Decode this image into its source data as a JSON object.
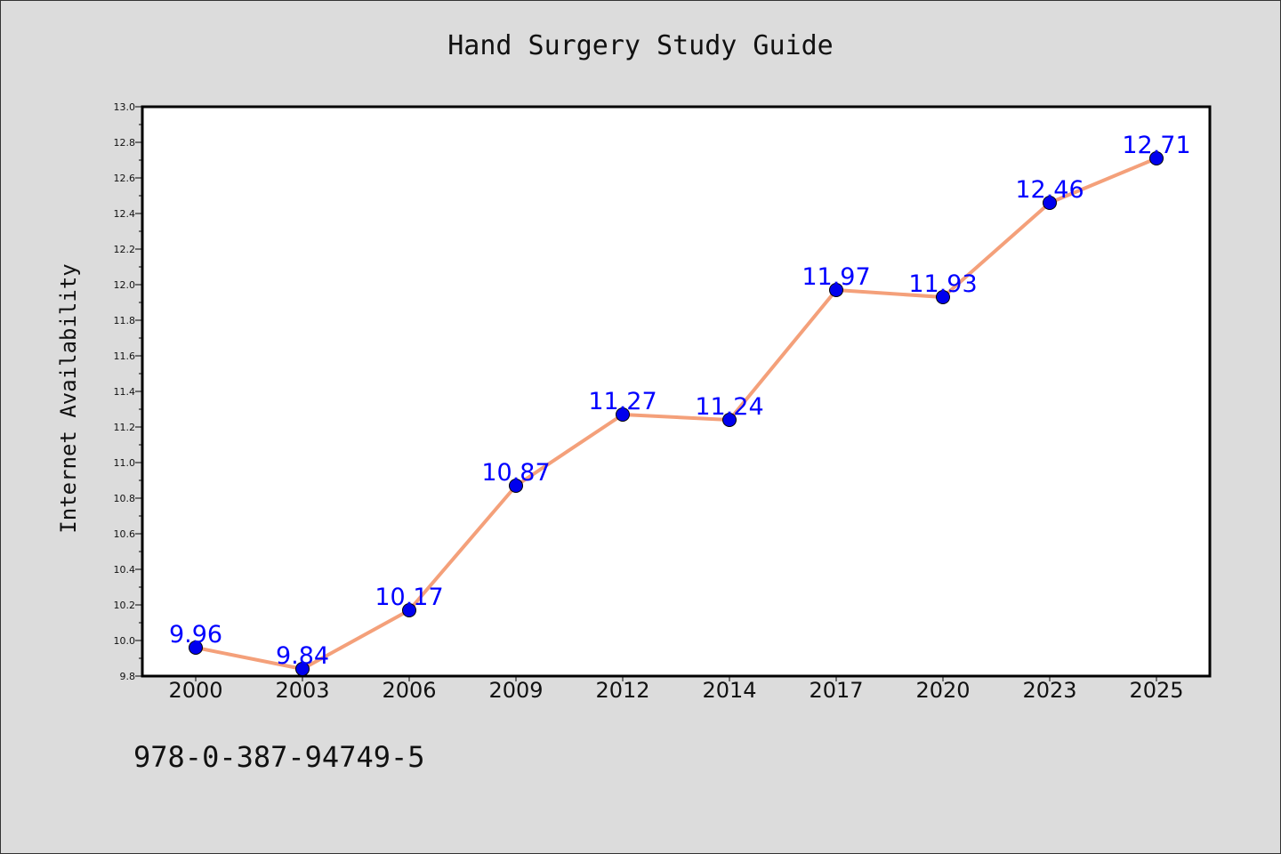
{
  "header": {
    "isbn": "978-0-387-94749-5"
  },
  "chart_data": {
    "type": "line",
    "title": "Hand Surgery Study Guide",
    "xlabel": "",
    "ylabel": "Internet Availability",
    "categories": [
      "2000",
      "2003",
      "2006",
      "2009",
      "2012",
      "2014",
      "2017",
      "2020",
      "2023",
      "2025"
    ],
    "values": [
      9.96,
      9.84,
      10.17,
      10.87,
      11.27,
      11.24,
      11.97,
      11.93,
      12.46,
      12.71
    ],
    "data_labels": [
      "9.96",
      "9.84",
      "10.17",
      "10.87",
      "11.27",
      "11.24",
      "11.97",
      "11.93",
      "12.46",
      "12.71"
    ],
    "ylim": [
      9.8,
      13.0
    ],
    "yticks": [
      "9.8",
      "10.0",
      "10.2",
      "10.4",
      "10.6",
      "10.8",
      "11.0",
      "11.2",
      "11.4",
      "11.6",
      "11.8",
      "12.0",
      "12.2",
      "12.4",
      "12.6",
      "12.8",
      "13.0"
    ],
    "grid": false,
    "legend": "none",
    "colors": {
      "line": "#f4a07a",
      "marker": "#0000ee",
      "label": "#0000ff",
      "plot_bg": "#ffffff",
      "page_bg": "#dcdcdc"
    }
  }
}
